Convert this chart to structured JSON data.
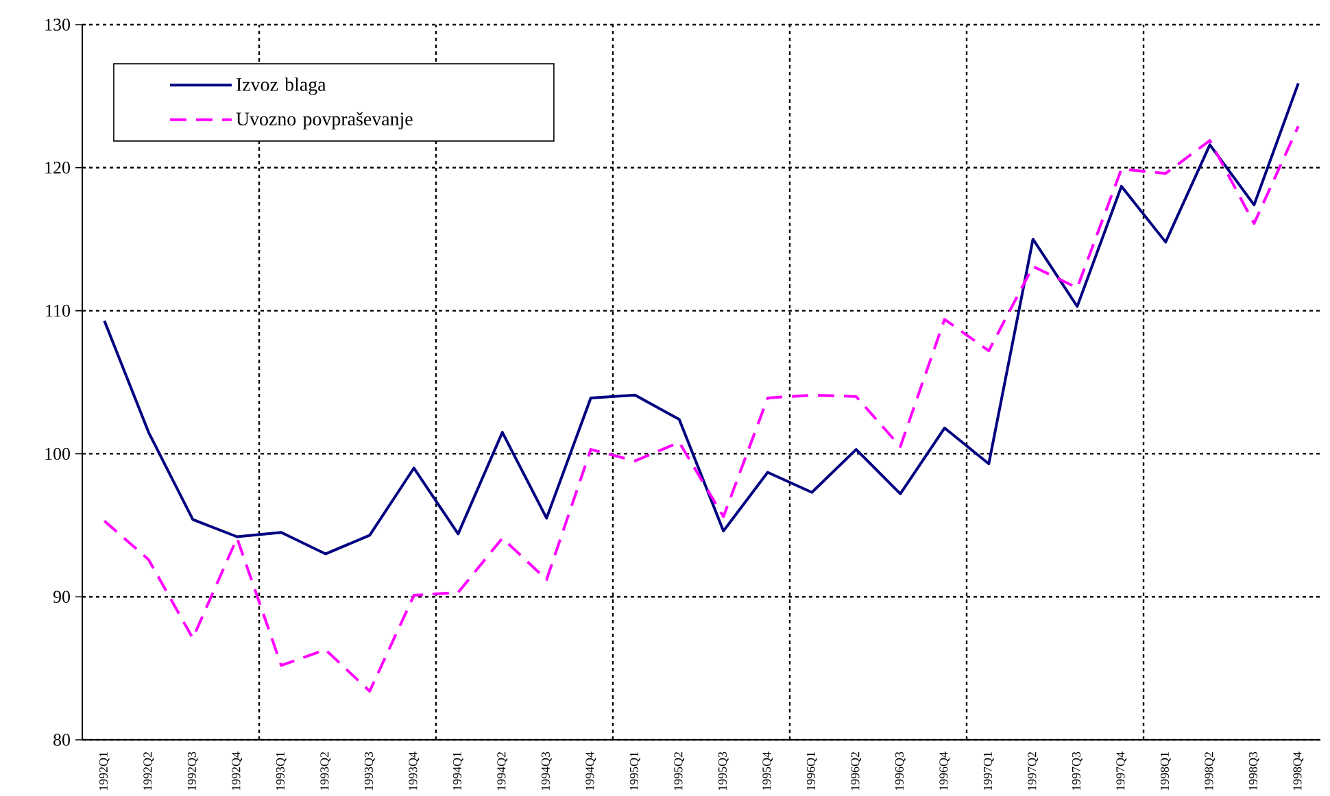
{
  "chart_data": {
    "type": "line",
    "categories": [
      "1992Q1",
      "1992Q2",
      "1992Q3",
      "1992Q4",
      "1993Q1",
      "1993Q2",
      "1993Q3",
      "1993Q4",
      "1994Q1",
      "1994Q2",
      "1994Q3",
      "1994Q4",
      "1995Q1",
      "1995Q2",
      "1995Q3",
      "1995Q4",
      "1996Q1",
      "1996Q2",
      "1996Q3",
      "1996Q4",
      "1997Q1",
      "1997Q2",
      "1997Q3",
      "1997Q4",
      "1998Q1",
      "1998Q2",
      "1998Q3",
      "1998Q4"
    ],
    "series": [
      {
        "name": "Izvoz blaga",
        "color": "#000080",
        "line_style": "solid",
        "values": [
          109.3,
          101.5,
          95.4,
          94.2,
          94.5,
          93.0,
          94.3,
          99.0,
          94.4,
          101.5,
          95.5,
          103.9,
          104.1,
          102.4,
          94.6,
          98.7,
          97.3,
          100.3,
          97.2,
          101.8,
          99.3,
          115.0,
          110.3,
          118.7,
          114.8,
          121.6,
          117.4,
          125.9
        ]
      },
      {
        "name": "Uvozno povpraševanje",
        "color": "#ff00ff",
        "line_style": "dashed",
        "values": [
          95.3,
          92.6,
          87.1,
          94.1,
          85.2,
          86.3,
          83.4,
          90.1,
          90.3,
          94.1,
          91.2,
          100.3,
          99.5,
          100.8,
          95.6,
          103.9,
          104.1,
          104.0,
          100.5,
          109.4,
          107.2,
          113.1,
          111.6,
          119.9,
          119.6,
          121.9,
          116.1,
          122.9
        ]
      }
    ],
    "ylim": [
      80,
      130
    ],
    "yticks": [
      80,
      90,
      100,
      110,
      120,
      130
    ],
    "grid": true,
    "legend": "top left",
    "marker": "none"
  }
}
